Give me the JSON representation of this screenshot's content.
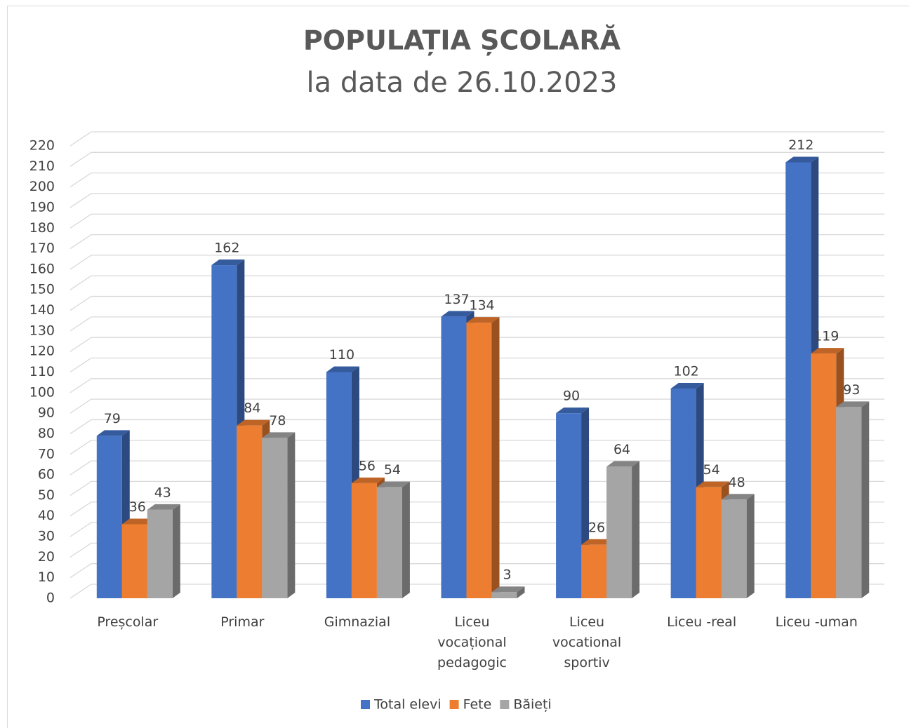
{
  "chart_data": {
    "type": "bar3d",
    "title": "POPULAȚIA ȘCOLARĂ",
    "subtitle": "la data de  26.10.2023",
    "categories": [
      "Preșcolar",
      "Primar",
      "Gimnazial",
      "Liceu vocațional pedagogic",
      "Liceu vocational sportiv",
      "Liceu -real",
      "Liceu -uman"
    ],
    "series": [
      {
        "name": "Total elevi",
        "color": "#4472c4",
        "values": [
          79,
          162,
          110,
          137,
          90,
          102,
          212
        ]
      },
      {
        "name": "Fete",
        "color": "#ed7d31",
        "values": [
          36,
          84,
          56,
          134,
          26,
          54,
          119
        ]
      },
      {
        "name": "Băieți",
        "color": "#a5a5a5",
        "values": [
          43,
          78,
          54,
          3,
          64,
          48,
          93
        ]
      }
    ],
    "ylim": [
      0,
      220
    ],
    "yticks": [
      0,
      10,
      20,
      30,
      40,
      50,
      60,
      70,
      80,
      90,
      100,
      110,
      120,
      130,
      140,
      150,
      160,
      170,
      180,
      190,
      200,
      210,
      220
    ],
    "grid": true,
    "legend": "bottom"
  }
}
